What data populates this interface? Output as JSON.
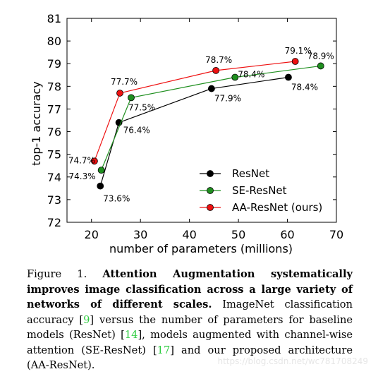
{
  "chart_data": {
    "type": "line",
    "xlabel": "number of parameters (millions)",
    "ylabel": "top-1 accuracy",
    "xlim": [
      15,
      70
    ],
    "ylim": [
      72,
      81
    ],
    "xticks": [
      20,
      30,
      40,
      50,
      60,
      70
    ],
    "yticks": [
      72,
      73,
      74,
      75,
      76,
      77,
      78,
      79,
      80,
      81
    ],
    "grid": false,
    "legend_position": "bottom-right",
    "series": [
      {
        "name": "ResNet",
        "color": "#000000",
        "points": [
          {
            "x": 21.8,
            "y": 73.6,
            "label": "73.6%"
          },
          {
            "x": 25.6,
            "y": 76.4,
            "label": "76.4%"
          },
          {
            "x": 44.5,
            "y": 77.9,
            "label": "77.9%"
          },
          {
            "x": 60.2,
            "y": 78.4,
            "label": "78.4%"
          }
        ]
      },
      {
        "name": "SE-ResNet",
        "color": "#1f8f1f",
        "points": [
          {
            "x": 22.0,
            "y": 74.3,
            "label": "74.3%"
          },
          {
            "x": 28.1,
            "y": 77.5,
            "label": "77.5%"
          },
          {
            "x": 49.3,
            "y": 78.4,
            "label": "78.4%"
          },
          {
            "x": 66.8,
            "y": 78.9,
            "label": "78.9%"
          }
        ]
      },
      {
        "name": "AA-ResNet (ours)",
        "color": "#ee1111",
        "points": [
          {
            "x": 20.6,
            "y": 74.7,
            "label": "74.7%"
          },
          {
            "x": 25.8,
            "y": 77.7,
            "label": "77.7%"
          },
          {
            "x": 45.4,
            "y": 78.7,
            "label": "78.7%"
          },
          {
            "x": 61.6,
            "y": 79.1,
            "label": "79.1%"
          }
        ]
      }
    ]
  },
  "caption": {
    "prefix": "Figure 1.",
    "bold_text": "Attention Augmentation systematically improves image classification across a large variety of networks of different scales.",
    "segments": [
      {
        "text": " ImageNet classification accuracy [",
        "ref": false
      },
      {
        "text": "9",
        "ref": true
      },
      {
        "text": "] versus the number of parameters for baseline models (ResNet) [",
        "ref": false
      },
      {
        "text": "14",
        "ref": true
      },
      {
        "text": "], models augmented with channel-wise attention (SE-ResNet) [",
        "ref": false
      },
      {
        "text": "17",
        "ref": true
      },
      {
        "text": "] and our proposed architecture (AA-ResNet).",
        "ref": false
      }
    ]
  },
  "watermark": "https://blog.csdn.net/wc781708249"
}
